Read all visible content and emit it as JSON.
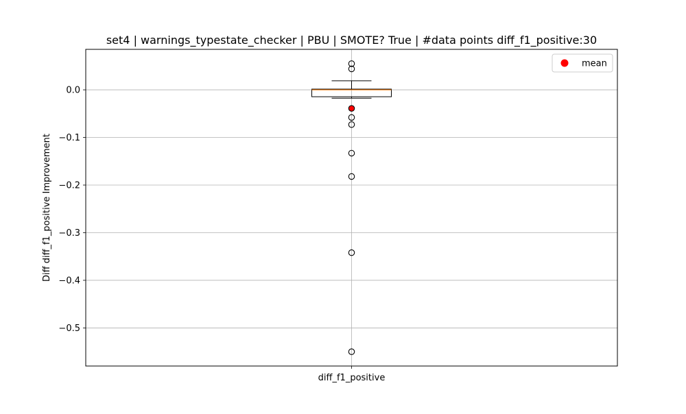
{
  "chart_data": {
    "type": "box",
    "title": "set4 | warnings_typestate_checker | PBU | SMOTE? True | #data points diff_f1_positive:30",
    "xlabel": "",
    "ylabel": "Diff diff_f1_positive Improvement",
    "categories": [
      "diff_f1_positive"
    ],
    "ylim": [
      -0.58,
      0.085
    ],
    "yticks": [
      0.0,
      -0.1,
      -0.2,
      -0.3,
      -0.4,
      -0.5
    ],
    "ytick_labels": [
      "0.0",
      "−0.1",
      "−0.2",
      "−0.3",
      "−0.4",
      "−0.5"
    ],
    "grid": true,
    "legend_position": "top-right",
    "legend": [
      {
        "label": "mean",
        "color": "#ff0000",
        "marker": "circle"
      }
    ],
    "boxes": [
      {
        "name": "diff_f1_positive",
        "q1": -0.0145,
        "median": 0.0,
        "q3": 0.0015,
        "whisker_low": -0.0175,
        "whisker_high": 0.019,
        "mean": -0.0395,
        "outliers": [
          0.055,
          0.044,
          -0.039,
          -0.058,
          -0.073,
          -0.133,
          -0.182,
          -0.342,
          -0.55
        ]
      }
    ],
    "colors": {
      "median": "#ff7f0e",
      "mean": "#ff0000",
      "box": "#000000",
      "grid": "#b0b0b0"
    }
  }
}
